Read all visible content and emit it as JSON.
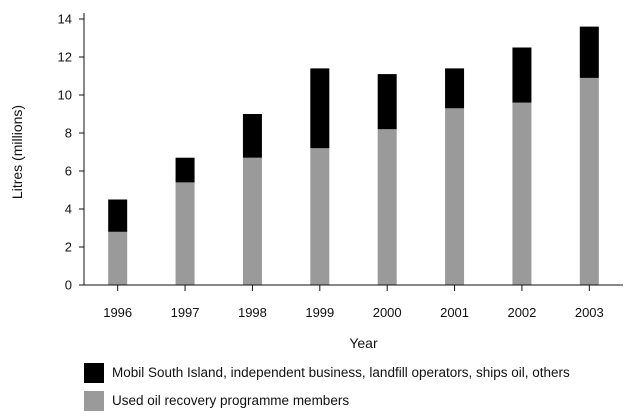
{
  "chart_data": {
    "type": "bar",
    "stacked": true,
    "categories": [
      "1996",
      "1997",
      "1998",
      "1999",
      "2000",
      "2001",
      "2002",
      "2003"
    ],
    "series": [
      {
        "name": "Used oil recovery programme members",
        "color": "#9a9a9a",
        "values": [
          2.8,
          5.4,
          6.7,
          7.2,
          8.2,
          9.3,
          9.6,
          10.9
        ]
      },
      {
        "name": "Mobil South Island, independent business, landfill operators, ships oil, others",
        "color": "#000000",
        "values": [
          1.7,
          1.3,
          2.3,
          4.2,
          2.9,
          2.1,
          2.9,
          2.7
        ]
      }
    ],
    "xlabel": "Year",
    "ylabel": "Litres (millions)",
    "ylim": [
      0,
      14
    ],
    "yticks": [
      "0",
      "2",
      "4",
      "6",
      "8",
      "10",
      "12",
      "14"
    ],
    "grid": false,
    "legend_position": "bottom"
  }
}
